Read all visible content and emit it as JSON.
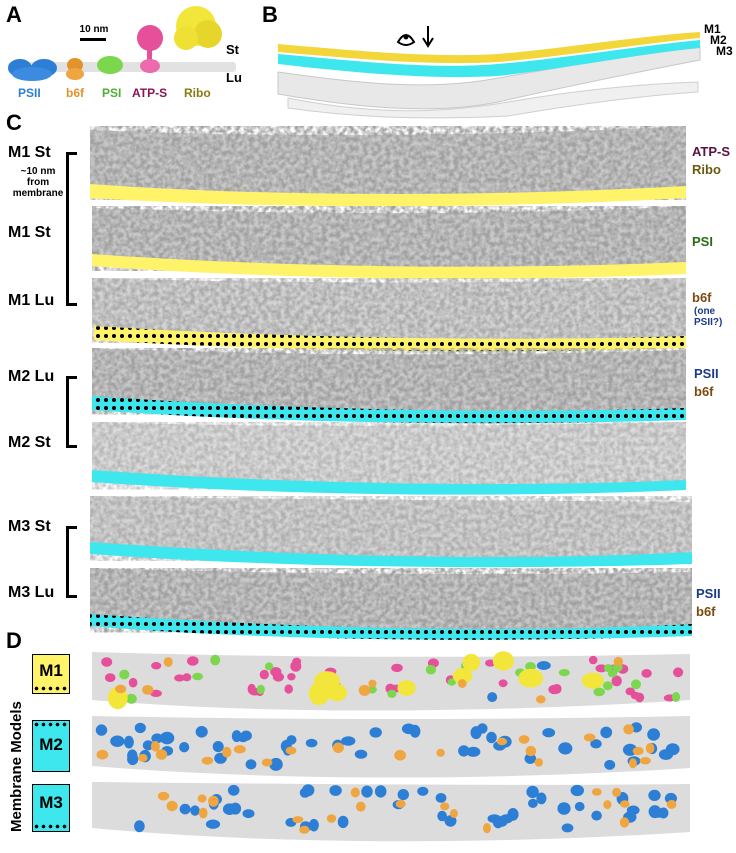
{
  "panels": {
    "a": "A",
    "b": "B",
    "c": "C",
    "d": "D"
  },
  "panel_a": {
    "scale_bar": "10 nm",
    "stroma": "St",
    "lumen": "Lu",
    "proteins": [
      {
        "label": "PSII",
        "color": "#2d7fd6"
      },
      {
        "label": "b6f",
        "color": "#e3932b"
      },
      {
        "label": "PSI",
        "color": "#4caf33"
      },
      {
        "label": "ATP-S",
        "color": "#8c1257"
      },
      {
        "label": "Ribo",
        "color": "#8a7a10"
      }
    ]
  },
  "panel_b": {
    "membranes": [
      "M1",
      "M2",
      "M3"
    ]
  },
  "panel_c": {
    "rows": [
      {
        "label": "M1 St",
        "sublabel": "~10 nm\nfrom\nmembrane",
        "proteins": [
          "ATP-S",
          "Ribo"
        ],
        "band_color": "#fff36a",
        "dotted": false
      },
      {
        "label": "M1 St",
        "proteins": [
          "PSI"
        ],
        "band_color": "#fff36a",
        "dotted": false
      },
      {
        "label": "M1 Lu",
        "proteins": [
          "b6f",
          "(one\nPSII?)"
        ],
        "band_color": "#fff36a",
        "dotted": true
      },
      {
        "label": "M2 Lu",
        "proteins": [
          "PSII",
          "b6f"
        ],
        "band_color": "#3ee6ee",
        "dotted": true
      },
      {
        "label": "M2 St",
        "proteins": [],
        "band_color": "#3ee6ee",
        "dotted": false
      },
      {
        "label": "M3 St",
        "proteins": [],
        "band_color": "#3ee6ee",
        "dotted": false
      },
      {
        "label": "M3 Lu",
        "proteins": [
          "PSII",
          "b6f"
        ],
        "band_color": "#3ee6ee",
        "dotted": true
      }
    ]
  },
  "panel_d": {
    "axis_label": "Membrane Models",
    "models": [
      {
        "label": "M1",
        "color": "#fff36a"
      },
      {
        "label": "M2",
        "color": "#3ee6ee"
      },
      {
        "label": "M3",
        "color": "#3ee6ee"
      }
    ]
  }
}
